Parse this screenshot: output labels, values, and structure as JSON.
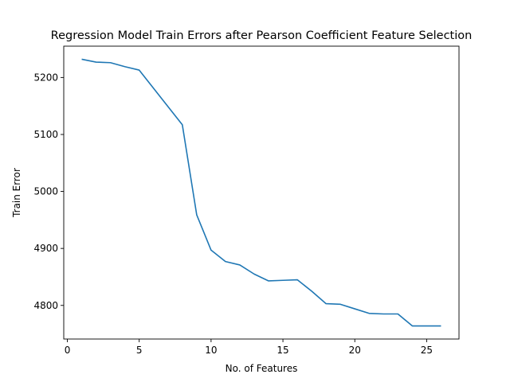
{
  "chart_data": {
    "type": "line",
    "title": "Regression Model Train Errors after Pearson Coefficient Feature Selection",
    "xlabel": "No. of Features",
    "ylabel": "Train Error",
    "xlim": [
      -0.25,
      27.25
    ],
    "ylim": [
      4741,
      5255
    ],
    "xticks": [
      0,
      5,
      10,
      15,
      20,
      25
    ],
    "yticks": [
      4800,
      4900,
      5000,
      5100,
      5200
    ],
    "grid": false,
    "legend": "none",
    "series": [
      {
        "color": "#1f77b4",
        "x": [
          1,
          2,
          3,
          4,
          5,
          6,
          7,
          8,
          9,
          10,
          11,
          12,
          13,
          14,
          15,
          16,
          17,
          18,
          19,
          20,
          21,
          22,
          23,
          24,
          25,
          26
        ],
        "y": [
          5232,
          5227,
          5226,
          5219,
          5213,
          5181,
          5149,
          5117,
          4959,
          4897,
          4877,
          4871,
          4855,
          4843,
          4844,
          4845,
          4825,
          4803,
          4802,
          4794,
          4786,
          4785,
          4785,
          4764,
          4764,
          4764
        ]
      }
    ]
  }
}
